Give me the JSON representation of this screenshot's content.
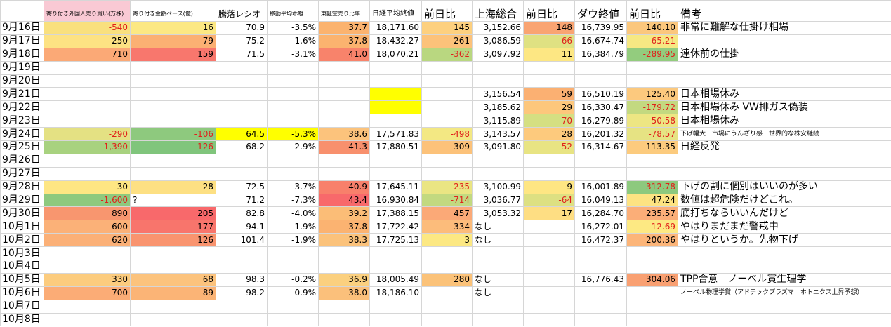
{
  "table": {
    "header": [
      "",
      "寄り付き外国人売り買い(万株)",
      "寄り付き金額ベース(億)",
      "騰落レシオ",
      "移動平均乖離",
      "東証空売り比率",
      "日経平均終値",
      "前日比",
      "上海総合",
      "前日比",
      "ダウ終値",
      "前日比",
      "備考"
    ],
    "header_fill": [
      null,
      "#f9c9d4",
      null,
      null,
      null,
      null,
      null,
      null,
      null,
      null,
      null,
      null,
      null
    ],
    "rows": [
      {
        "cells": [
          "9月16日",
          "-540",
          "16",
          "70.9",
          "-3.5%",
          "37.7",
          "18,171.60",
          "145",
          "3,152.66",
          "148",
          "16,739.95",
          "140.10",
          "非常に難解な仕掛け相場"
        ],
        "fills": [
          null,
          "#f9e07e",
          "#fce883",
          null,
          null,
          "#fbb36f",
          null,
          "#fdd07f",
          null,
          "#f9a472",
          null,
          "#fbc77d",
          null
        ]
      },
      {
        "cells": [
          "9月17日",
          "250",
          "79",
          "75.2",
          "-1.6%",
          "37.8",
          "18,432.27",
          "261",
          "3,086.59",
          "-66",
          "16,674.74",
          "-65.21",
          null
        ],
        "fills": [
          null,
          "#fde283",
          "#fbb073",
          null,
          null,
          "#fbb36f",
          null,
          "#fcc27a",
          null,
          "#dfe182",
          null,
          "#f6e883",
          null
        ]
      },
      {
        "cells": [
          "9月18日",
          "710",
          "159",
          "71.5",
          "-3.1%",
          "41.0",
          "18,070.21",
          "-362",
          "3,097.92",
          "11",
          "16,384.79",
          "-289.95",
          "連休前の仕掛"
        ],
        "fills": [
          null,
          "#fba976",
          "#f8776d",
          null,
          null,
          "#f8836b",
          null,
          "#b9d780",
          null,
          "#fde783",
          null,
          "#93cc7e",
          null
        ]
      },
      {
        "cells": [
          "9月19日"
        ]
      },
      {
        "cells": [
          "9月20日"
        ]
      },
      {
        "cells": [
          "9月21日",
          null,
          null,
          null,
          null,
          null,
          null,
          null,
          "3,156.54",
          "59",
          "16,510.19",
          "125.40",
          "日本相場休み"
        ],
        "fills": [
          null,
          null,
          null,
          null,
          null,
          null,
          "#ffff00",
          null,
          null,
          "#fbb072",
          null,
          "#fcc97e",
          null
        ]
      },
      {
        "cells": [
          "9月22日",
          null,
          null,
          null,
          null,
          null,
          null,
          null,
          "3,185.62",
          "29",
          "16,330.47",
          "-179.72",
          "日本相場休み VW排ガス偽装"
        ],
        "fills": [
          null,
          null,
          null,
          null,
          null,
          null,
          "#ffff00",
          null,
          null,
          "#fdc77c",
          null,
          "#c3d980",
          null
        ]
      },
      {
        "cells": [
          "9月23日",
          null,
          null,
          null,
          null,
          null,
          null,
          null,
          "3,115.89",
          "-70",
          "16,279.89",
          "-50.58",
          "日本相場休み"
        ],
        "fills": [
          null,
          null,
          null,
          null,
          null,
          null,
          null,
          null,
          null,
          "#d5df82",
          null,
          "#ede683",
          null
        ]
      },
      {
        "cells": [
          "9月24日",
          "-290",
          "-106",
          "64.5",
          "-5.3%",
          "38.6",
          "17,571.83",
          "-498",
          "3,143.57",
          "28",
          "16,201.32",
          "-78.57",
          "下げ幅大　市場にうんざり感　世界的な株安継続"
        ],
        "fills": [
          null,
          "#e4e183",
          "#8ec97e",
          "#ffff00",
          "#ffff00",
          "#fcc37c",
          null,
          "#f3e883",
          null,
          "#fdca7d",
          null,
          "#e6e383",
          null
        ]
      },
      {
        "cells": [
          "9月25日",
          "-1,390",
          "-126",
          "68.2",
          "-2.9%",
          "41.3",
          "17,880.51",
          "309",
          "3,091.80",
          "-52",
          "16,314.67",
          "113.35",
          "日経反発"
        ],
        "fills": [
          null,
          "#a8d27f",
          "#80c57c",
          null,
          null,
          "#f8906d",
          null,
          "#fcc27a",
          null,
          "#e8e483",
          null,
          "#fccb7e",
          null
        ]
      },
      {
        "cells": [
          "9月26日"
        ]
      },
      {
        "cells": [
          "9月27日"
        ]
      },
      {
        "cells": [
          "9月28日",
          "30",
          "28",
          "72.5",
          "-3.7%",
          "40.9",
          "17,645.11",
          "-235",
          "3,100.99",
          "9",
          "16,001.89",
          "-312.78",
          "下げの割に個別はいいのが多い"
        ],
        "fills": [
          null,
          "#fee683",
          "#fde083",
          null,
          null,
          "#f8806b",
          null,
          "#eae583",
          null,
          "#fee683",
          null,
          "#8dc97e",
          null
        ]
      },
      {
        "cells": [
          "9月29日",
          "-1,600",
          "?",
          "71.2",
          "-7.3%",
          "43.4",
          "16,930.84",
          "-714",
          "3,036.77",
          "-64",
          "16,049.13",
          "47.24",
          "数値は超危険だけどこれ。"
        ],
        "fills": [
          null,
          "#8ec97e",
          null,
          null,
          null,
          "#f8696b",
          null,
          "#c2d980",
          null,
          "#dde082",
          null,
          "#fde382",
          null
        ]
      },
      {
        "cells": [
          "9月30日",
          "890",
          "205",
          "82.8",
          "-4.0%",
          "39.2",
          "17,388.15",
          "457",
          "3,053.32",
          "17",
          "16,284.70",
          "235.57",
          "底打ちならいいんだけど"
        ],
        "fills": [
          null,
          "#f8966f",
          "#f8696b",
          null,
          null,
          "#fbbd77",
          null,
          "#fba977",
          null,
          "#fede83",
          null,
          "#fbae78",
          null
        ]
      },
      {
        "cells": [
          "10月1日",
          "600",
          "177",
          "94.1",
          "-1.9%",
          "37.8",
          "17,722.42",
          "334",
          "なし",
          null,
          "16,272.01",
          "-12.69",
          "やはりまだまだ警戒中"
        ],
        "fills": [
          null,
          "#fbb178",
          "#f8756c",
          null,
          null,
          "#fbb371",
          null,
          "#fcbc7b",
          null,
          null,
          null,
          "#fde983",
          null
        ]
      },
      {
        "cells": [
          "10月2日",
          "620",
          "126",
          "101.4",
          "-1.9%",
          "38.3",
          "17,725.13",
          "3",
          "なし",
          null,
          "16,472.37",
          "200.36",
          "やはりというか。先物下げ"
        ],
        "fills": [
          null,
          "#fbb077",
          "#f9946f",
          null,
          null,
          "#fbc27b",
          null,
          "#fce883",
          null,
          null,
          null,
          "#fcb579",
          null
        ]
      },
      {
        "cells": [
          "10月3日"
        ]
      },
      {
        "cells": [
          "10月4日"
        ]
      },
      {
        "cells": [
          "10月5日",
          "330",
          "68",
          "98.3",
          "-0.2%",
          "36.9",
          "18,005.49",
          "280",
          "なし",
          null,
          "16,776.43",
          "304.06",
          "TPP合意　ノーベル賞生理学"
        ],
        "fills": [
          null,
          "#fccc7e",
          "#fcc37d",
          null,
          null,
          "#fbd07f",
          null,
          "#fbc279",
          null,
          null,
          null,
          "#f9a072",
          null
        ]
      },
      {
        "cells": [
          "10月6日",
          "700",
          "89",
          "98.2",
          "0.9%",
          "38.0",
          "18,186.10",
          null,
          "なし",
          null,
          null,
          null,
          "ノーベル物理学賞（アドテックプラズマ　ホトニクス上昇予想）"
        ],
        "fills": [
          null,
          "#fbac76",
          "#fbb476",
          null,
          null,
          "#fbc07b",
          null,
          null,
          null,
          null,
          null,
          null,
          null
        ]
      },
      {
        "cells": [
          "10月7日"
        ]
      },
      {
        "cells": [
          "10月8日"
        ]
      }
    ]
  }
}
